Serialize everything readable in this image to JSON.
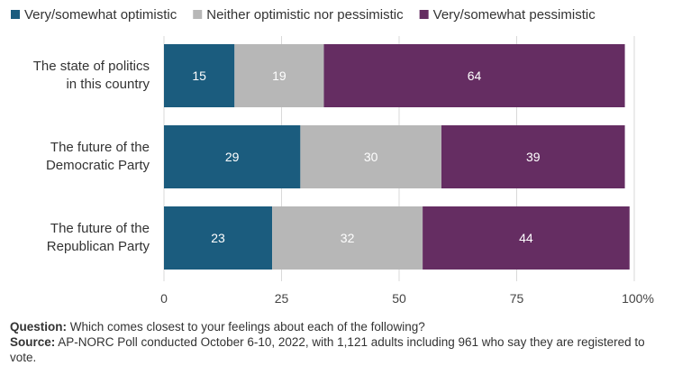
{
  "chart_data": {
    "type": "bar",
    "orientation": "horizontal",
    "stacked": true,
    "categories": [
      [
        "The state of politics",
        "in this country"
      ],
      [
        "The future of the",
        "Democratic Party"
      ],
      [
        "The future of the",
        "Republican Party"
      ]
    ],
    "series": [
      {
        "name": "Very/somewhat optimistic",
        "color": "#1b5c7e",
        "values": [
          15,
          29,
          23
        ]
      },
      {
        "name": "Neither optimistic nor pessimistic",
        "color": "#b7b7b7",
        "values": [
          19,
          30,
          32
        ]
      },
      {
        "name": "Very/somewhat pessimistic",
        "color": "#652d62",
        "values": [
          64,
          39,
          44
        ]
      }
    ],
    "xlim": [
      0,
      100
    ],
    "xticks": [
      0,
      25,
      50,
      75,
      100
    ],
    "xtick_labels": [
      "0",
      "25",
      "50",
      "75",
      "100%"
    ],
    "grid": "vertical",
    "legend_position": "top"
  },
  "notes": {
    "question_label": "Question:",
    "question_text": " Which comes closest to your feelings about each of the following?",
    "source_label": "Source:",
    "source_text": " AP-NORC Poll conducted October 6-10, 2022, with 1,121 adults including 961 who say they are registered to vote."
  }
}
